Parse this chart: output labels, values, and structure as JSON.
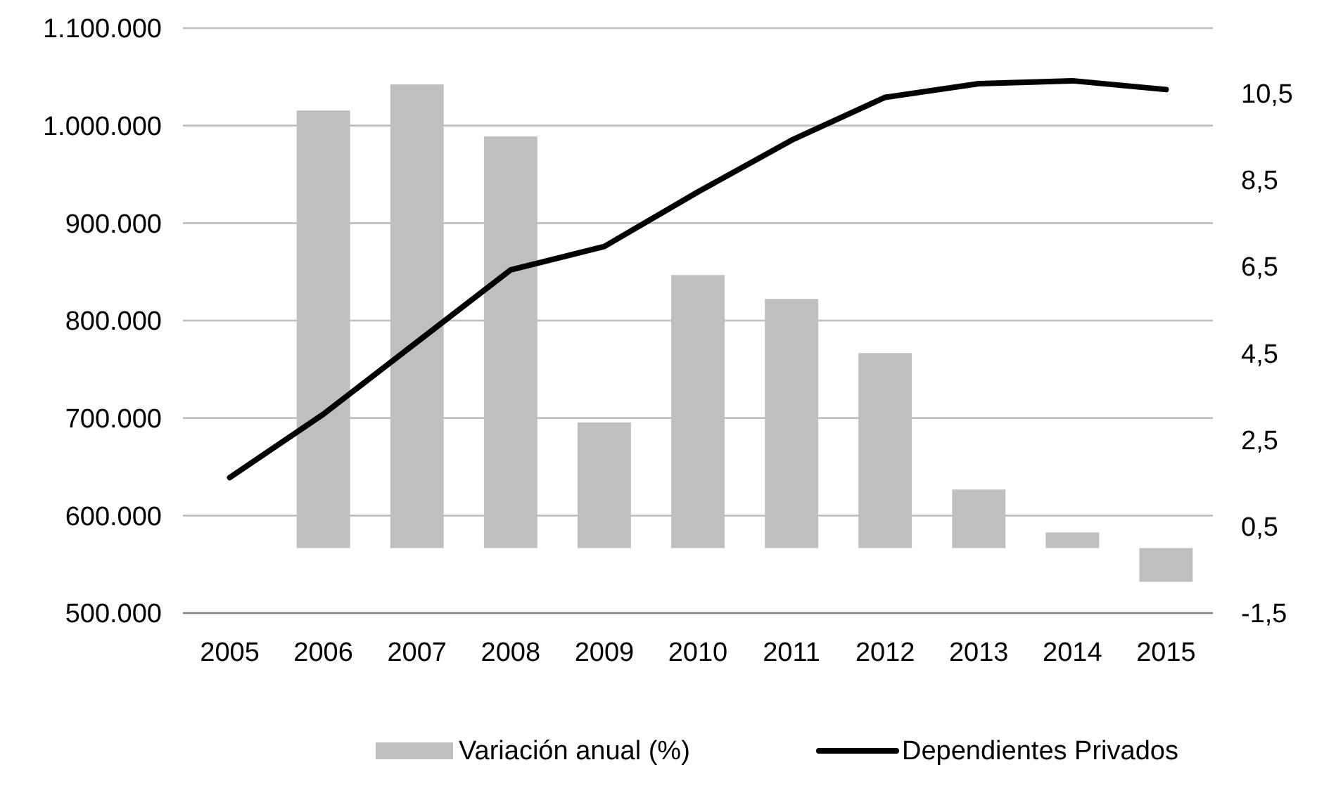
{
  "chart_data": {
    "type": "bar",
    "categories": [
      "2005",
      "2006",
      "2007",
      "2008",
      "2009",
      "2010",
      "2011",
      "2012",
      "2013",
      "2014",
      "2015"
    ],
    "series": [
      {
        "name": "Variación anual (%)",
        "axis": "y2",
        "color": "#bfbfbf",
        "values": [
          null,
          10.1,
          10.7,
          9.5,
          2.9,
          6.3,
          5.75,
          4.5,
          1.35,
          0.36,
          -0.78
        ]
      },
      {
        "name": "Dependientes Privados",
        "type": "line",
        "color": "#000000",
        "values": [
          639000,
          704000,
          778000,
          852000,
          876000,
          932000,
          985000,
          1029000,
          1043000,
          1046000,
          1037000
        ]
      }
    ],
    "ylim": [
      500000,
      1100000
    ],
    "yticks": [
      {
        "value": 500000,
        "label": "500.000"
      },
      {
        "value": 600000,
        "label": "600.000"
      },
      {
        "value": 700000,
        "label": "700.000"
      },
      {
        "value": 800000,
        "label": "800.000"
      },
      {
        "value": 900000,
        "label": "900.000"
      },
      {
        "value": 1000000,
        "label": "1.000.000"
      },
      {
        "value": 1100000,
        "label": "1.100.000"
      }
    ],
    "y2lim": [
      -1.5,
      12
    ],
    "y2ticks": [
      {
        "value": -1.5,
        "label": "-1,5"
      },
      {
        "value": 0.5,
        "label": "0,5"
      },
      {
        "value": 2.5,
        "label": "2,5"
      },
      {
        "value": 4.5,
        "label": "4,5"
      },
      {
        "value": 6.5,
        "label": "6,5"
      },
      {
        "value": 8.5,
        "label": "8,5"
      },
      {
        "value": 10.5,
        "label": "10,5"
      }
    ],
    "grid": "y",
    "legend": "bottom",
    "marker": "none",
    "line_style": "solid"
  }
}
